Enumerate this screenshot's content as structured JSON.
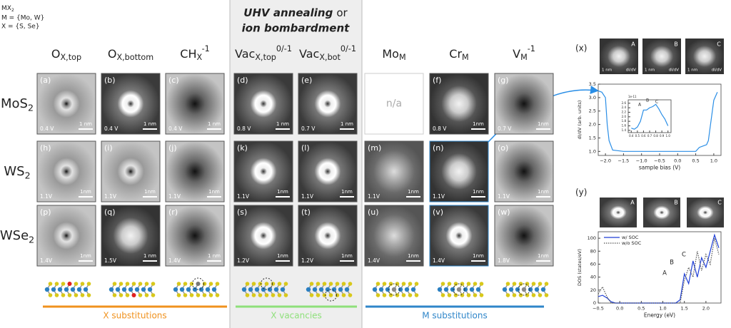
{
  "header": {
    "formula": {
      "base": "MX",
      "sub": "2"
    },
    "m_set": "M = {Mo, W}",
    "x_set": "X = {S, Se}"
  },
  "banner": {
    "emphasis": "UHV annealing",
    "connector": "or",
    "line2": "ion bombardment"
  },
  "columns": [
    {
      "base": "O",
      "sub": "X,top"
    },
    {
      "base": "O",
      "sub": "X,bottom"
    },
    {
      "base": "CH",
      "sub": "X",
      "sup": "-1"
    },
    {
      "base": "Vac",
      "sub": "X,top",
      "sup": "0/-1"
    },
    {
      "base": "Vac",
      "sub": "X,bot",
      "sup": "0/-1"
    },
    {
      "base": "Mo",
      "sub": "M"
    },
    {
      "base": "Cr",
      "sub": "M"
    },
    {
      "base": "V",
      "sub": "M",
      "sup": "-1"
    }
  ],
  "rows": [
    {
      "base": "MoS",
      "sub": "2"
    },
    {
      "base": "WS",
      "sub": "2"
    },
    {
      "base": "WSe",
      "sub": "2"
    }
  ],
  "panels": [
    [
      {
        "label": "(a)",
        "bias": "0.4 V",
        "scale": "1 nm"
      },
      {
        "label": "(b)",
        "bias": "0.4 V",
        "scale": "1 nm"
      },
      {
        "label": "(c)",
        "bias": "0.4 V",
        "scale": "1 nm"
      },
      {
        "label": "(d)",
        "bias": "0.8 V",
        "scale": "1 nm"
      },
      {
        "label": "(e)",
        "bias": "0.7 V",
        "scale": "1 nm"
      },
      {
        "text": "n/a"
      },
      {
        "label": "(f)",
        "bias": "0.8 V",
        "scale": "1nm"
      },
      {
        "label": "(g)",
        "bias": "0.7 V",
        "scale": "1nm"
      }
    ],
    [
      {
        "label": "(h)",
        "bias": "1.1V",
        "scale": "1nm"
      },
      {
        "label": "(i)",
        "bias": "1.1V",
        "scale": "1nm"
      },
      {
        "label": "(j)",
        "bias": "1.1V",
        "scale": "1nm"
      },
      {
        "label": "(k)",
        "bias": "1.1V",
        "scale": "1nm"
      },
      {
        "label": "(l)",
        "bias": "1.1V",
        "scale": "1nm"
      },
      {
        "label": "(m)",
        "bias": "1.1V",
        "scale": "1nm"
      },
      {
        "label": "(n)",
        "bias": "1.1V",
        "scale": "1nm"
      },
      {
        "label": "(o)",
        "bias": "1.1V",
        "scale": "1nm"
      }
    ],
    [
      {
        "label": "(p)",
        "bias": "1.4V",
        "scale": "1nm"
      },
      {
        "label": "(q)",
        "bias": "1.5V",
        "scale": "1 nm"
      },
      {
        "label": "(r)",
        "bias": "1.4V",
        "scale": "1 nm"
      },
      {
        "label": "(s)",
        "bias": "1.2V",
        "scale": "1nm"
      },
      {
        "label": "(t)",
        "bias": "1.2V",
        "scale": "1nm"
      },
      {
        "label": "(u)",
        "bias": "1.4V",
        "scale": "1nm"
      },
      {
        "label": "(v)",
        "bias": "1.4V",
        "scale": "1nm"
      },
      {
        "label": "(w)",
        "bias": "1.8V",
        "scale": "1nm"
      }
    ]
  ],
  "groups": [
    {
      "label": "X substitutions",
      "color": "#f0921e"
    },
    {
      "label": "X vacancies",
      "color": "#8ee07a"
    },
    {
      "label": "M substitutions",
      "color": "#2f86c9"
    }
  ],
  "figure_x": {
    "label": "(x)",
    "insets": [
      {
        "label": "A",
        "scale": "1 nm",
        "signal": "dI/dV"
      },
      {
        "label": "B",
        "scale": "1 nm",
        "signal": "dI/dV"
      },
      {
        "label": "C",
        "scale": "1 nm",
        "signal": "dI/dV"
      }
    ]
  },
  "figure_y": {
    "label": "(y)",
    "insets": [
      "A",
      "B",
      "C"
    ]
  },
  "chart_data": [
    {
      "type": "line",
      "xlabel": "sample bias (V)",
      "ylabel": "dI/dV (arb. units)",
      "xlim": [
        -2.2,
        1.2
      ],
      "ylim": [
        0.85,
        3.5
      ],
      "xticks": [
        {
          "value": -2,
          "label": "−2.0"
        },
        {
          "value": -1.5,
          "label": "−1.5"
        },
        {
          "value": -1,
          "label": "−1.0"
        },
        {
          "value": -0.5,
          "label": "−0.5"
        },
        {
          "value": 0,
          "label": "0.0"
        },
        0.5,
        {
          "value": 1,
          "label": "1.0"
        }
      ],
      "yticks": [
        {
          "value": 1,
          "label": "1.0"
        },
        1.5,
        {
          "value": 2,
          "label": "2.0"
        },
        2.5,
        {
          "value": 3,
          "label": "3.0"
        },
        3.5
      ],
      "x": [
        -2.2,
        -2.1,
        -2.0,
        -1.95,
        -1.9,
        -1.8,
        -1.5,
        -1.0,
        -0.5,
        0.0,
        0.5,
        0.6,
        0.7,
        0.8,
        0.85,
        0.9,
        1.0,
        1.1
      ],
      "series": [
        {
          "color": "#2a8ee6",
          "values": [
            3.25,
            3.2,
            3.0,
            2.0,
            1.4,
            1.05,
            1.0,
            1.0,
            1.0,
            1.0,
            1.0,
            1.15,
            1.2,
            1.25,
            1.4,
            1.9,
            2.9,
            3.2
          ]
        }
      ]
    },
    {
      "type": "line",
      "offset_label": "1e-11",
      "annotations": [
        "A",
        "B",
        "C"
      ],
      "xlim": [
        0.35,
        1.05
      ],
      "ylim": [
        1.3,
        2.75
      ],
      "xticks": [
        0.4,
        0.5,
        0.6,
        0.7,
        0.8,
        0.9,
        {
          "value": 1,
          "label": "1.0"
        }
      ],
      "yticks": [
        1.4,
        1.6,
        1.8,
        {
          "value": 2,
          "label": "2.0"
        },
        2.2,
        2.4,
        2.6
      ],
      "x": [
        0.4,
        0.45,
        0.5,
        0.55,
        0.6,
        0.65,
        0.7,
        0.75,
        0.8,
        0.85,
        0.9,
        0.95,
        1.0
      ],
      "series": [
        {
          "color": "#2a8ee6",
          "values": [
            1.5,
            1.45,
            1.55,
            1.8,
            2.3,
            2.3,
            2.4,
            2.45,
            2.55,
            2.35,
            2.1,
            1.9,
            1.6
          ]
        }
      ]
    },
    {
      "type": "line",
      "xlabel": "Energy (eV)",
      "ylabel": "DOS (states/eV)",
      "annotations": [
        "A",
        "B",
        "C"
      ],
      "legend": "upper left",
      "xlim": [
        -0.5,
        2.35
      ],
      "ylim": [
        0,
        110
      ],
      "xticks": [
        {
          "value": -0.5,
          "label": "−0.5"
        },
        {
          "value": 0,
          "label": "0.0"
        },
        0.5,
        {
          "value": 1,
          "label": "1.0"
        },
        1.5,
        {
          "value": 2,
          "label": "2.0"
        }
      ],
      "yticks": [
        0,
        20,
        40,
        60,
        80,
        100
      ],
      "x": [
        -0.5,
        -0.4,
        -0.3,
        -0.2,
        -0.1,
        0,
        0.1,
        0.2,
        0.3,
        0.4,
        0.5,
        0.6,
        0.7,
        0.8,
        0.9,
        1.0,
        1.1,
        1.2,
        1.3,
        1.4,
        1.5,
        1.6,
        1.7,
        1.8,
        1.9,
        2.0,
        2.1,
        2.2,
        2.3
      ],
      "series": [
        {
          "name": "w/ SOC",
          "color": "#1f3fd6",
          "linestyle": "solid",
          "values": [
            10,
            12,
            8,
            2,
            0,
            0,
            0,
            0,
            0,
            0,
            0,
            0,
            0,
            0,
            0,
            0,
            0,
            0,
            0,
            5,
            45,
            30,
            65,
            40,
            70,
            55,
            80,
            105,
            85
          ]
        },
        {
          "name": "w/o SOC",
          "color": "#555555",
          "linestyle": "dotted",
          "values": [
            14,
            25,
            10,
            0,
            0,
            0,
            0,
            0,
            0,
            0,
            0,
            0,
            0,
            0,
            0,
            0,
            0,
            0,
            0,
            0,
            35,
            55,
            40,
            80,
            50,
            75,
            60,
            100,
            75
          ]
        }
      ]
    }
  ]
}
